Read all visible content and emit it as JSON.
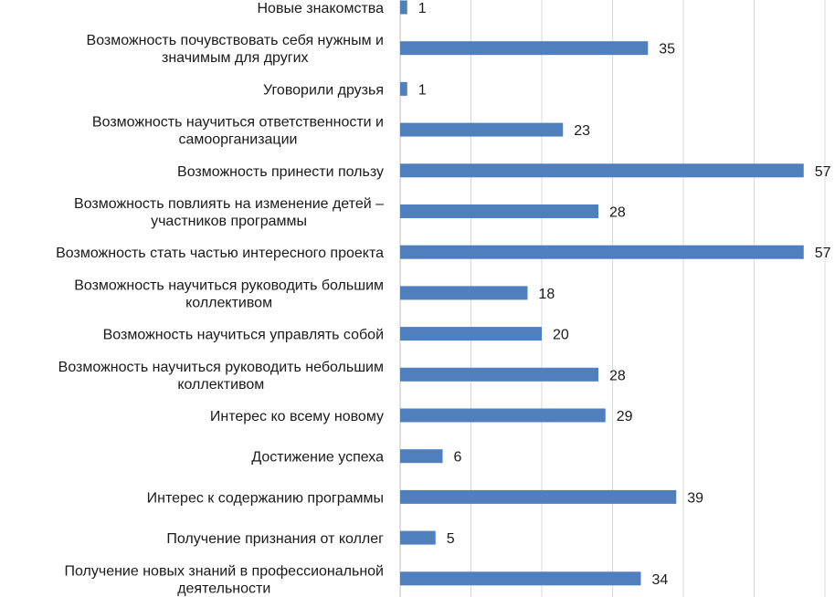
{
  "chart_data": {
    "type": "bar",
    "orientation": "horizontal",
    "title": "",
    "xlabel": "",
    "ylabel": "",
    "xlim": [
      0,
      60
    ],
    "grid": true,
    "legend": "none",
    "bar_color": "#4f7fbd",
    "categories": [
      [
        "Новые знакомства"
      ],
      [
        "Возможность почувствовать себя нужным и",
        "значимым для других"
      ],
      [
        "Уговорили друзья"
      ],
      [
        "Возможность научиться ответственности и",
        "самоорганизации"
      ],
      [
        "Возможность принести пользу"
      ],
      [
        "Возможность повлиять на изменение детей –",
        "участников программы"
      ],
      [
        "Возможность стать частью интересного проекта"
      ],
      [
        "Возможность научиться руководить большим",
        "коллективом"
      ],
      [
        "Возможность научиться управлять собой"
      ],
      [
        "Возможность научиться руководить небольшим",
        "коллективом"
      ],
      [
        "Интерес ко всему новому"
      ],
      [
        "Достижение успеха"
      ],
      [
        "Интерес к содержанию программы"
      ],
      [
        "Получение признания от коллег"
      ],
      [
        "Получение новых знаний в профессиональной",
        "деятельности"
      ]
    ],
    "values": [
      1,
      35,
      1,
      23,
      57,
      28,
      57,
      18,
      20,
      28,
      29,
      6,
      39,
      5,
      34
    ]
  }
}
